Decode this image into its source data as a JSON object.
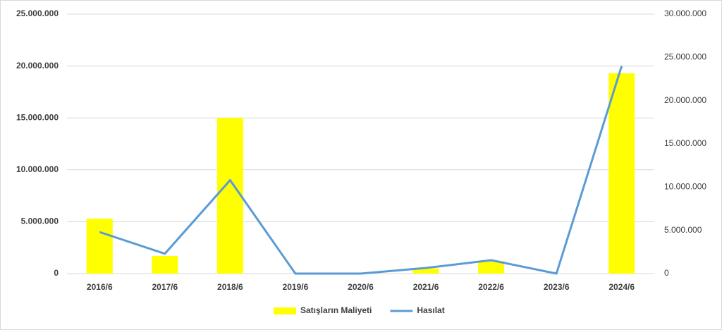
{
  "chart_data": {
    "type": "bar-line",
    "categories": [
      "2016/6",
      "2017/6",
      "2018/6",
      "2019/6",
      "2020/6",
      "2021/6",
      "2022/6",
      "2023/6",
      "2024/6"
    ],
    "series": [
      {
        "name": "Satışların Maliyeti",
        "type": "bar",
        "color": "#ffff00",
        "values": [
          5300000,
          1700000,
          15000000,
          0,
          0,
          500000,
          1200000,
          0,
          19300000
        ]
      },
      {
        "name": "Hasılat",
        "type": "line",
        "axis": "y2",
        "color": "#5b9bd5",
        "values": [
          4800000,
          2300000,
          10800000,
          0,
          0,
          650000,
          1550000,
          0,
          24000000
        ]
      }
    ],
    "ylim": [
      0,
      25000000
    ],
    "yticks": [
      0,
      {
        "value": 5000000,
        "label": "5.000.000"
      },
      {
        "value": 10000000,
        "label": "10.000.000"
      },
      {
        "value": 15000000,
        "label": "15.000.000"
      },
      {
        "value": 20000000,
        "label": "20.000.000"
      },
      {
        "value": 25000000,
        "label": "25.000.000"
      }
    ],
    "y2lim": [
      0,
      30000000
    ],
    "y2ticks": [
      0,
      {
        "value": 5000000,
        "label": "5.000.000"
      },
      {
        "value": 10000000,
        "label": "10.000.000"
      },
      {
        "value": 15000000,
        "label": "15.000.000"
      },
      {
        "value": 20000000,
        "label": "20.000.000"
      },
      {
        "value": 25000000,
        "label": "25.000.000"
      },
      {
        "value": 30000000,
        "label": "30.000.000"
      }
    ],
    "grid": true,
    "legend": "bottom"
  }
}
